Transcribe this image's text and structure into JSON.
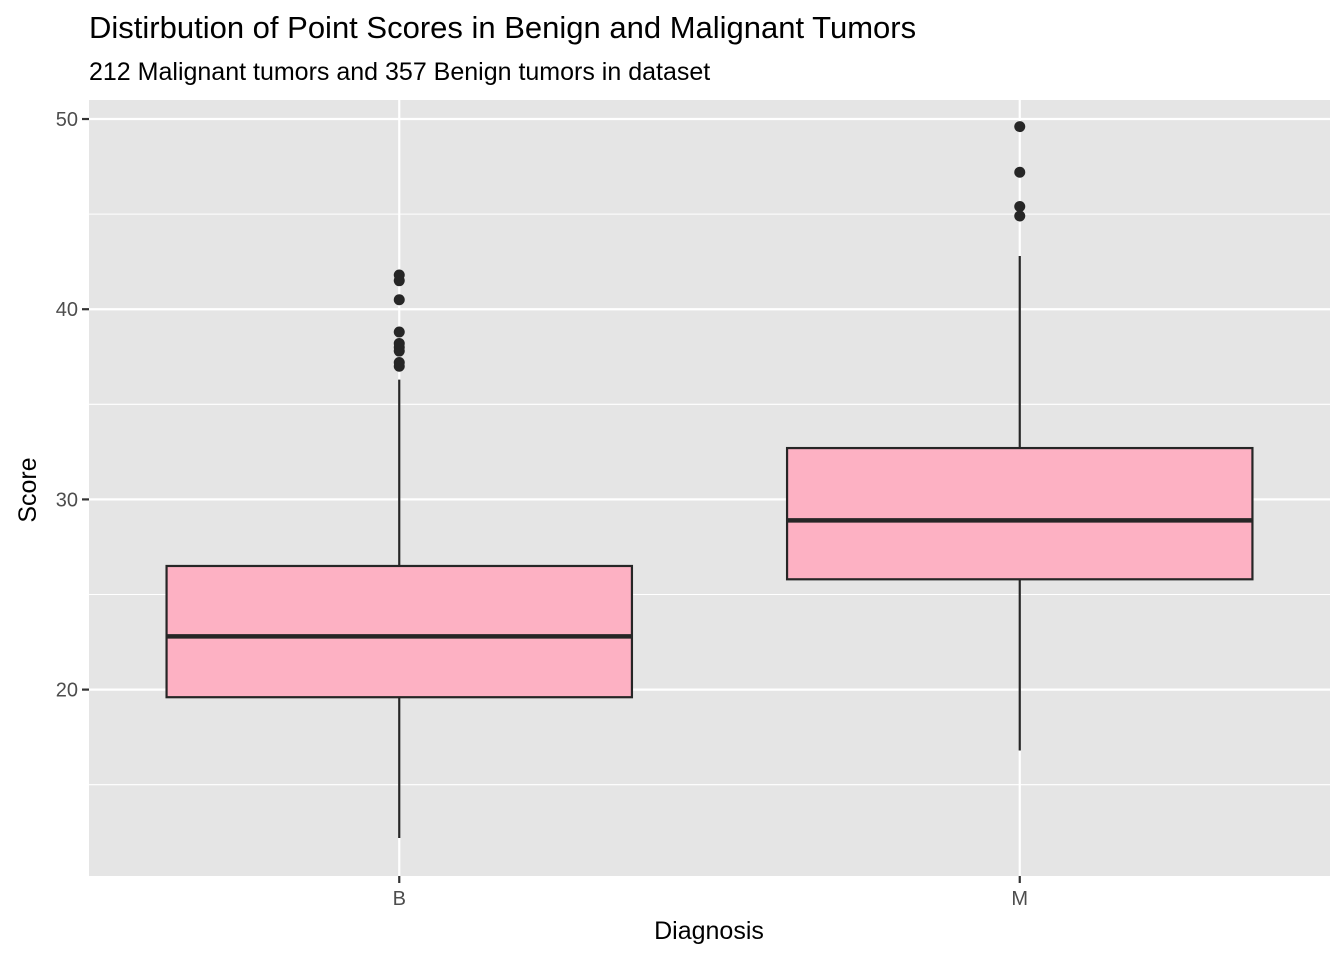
{
  "chart_data": {
    "type": "box",
    "title": "Distirbution of Point Scores in Benign and Malignant Tumors",
    "subtitle": "212 Malignant tumors and 357 Benign tumors in dataset",
    "xlabel": "Diagnosis",
    "ylabel": "Score",
    "categories": [
      "B",
      "M"
    ],
    "ylim": [
      10.2,
      51.0
    ],
    "y_ticks": [
      20,
      30,
      40,
      50
    ],
    "grid": true,
    "legend": "none",
    "fill_color": "#FDB1C3",
    "box_stroke": "#262626",
    "panel_background": "#E5E5E5",
    "boxes": [
      {
        "category": "B",
        "whisker_low": 12.2,
        "q1": 19.6,
        "median": 22.8,
        "q3": 26.5,
        "whisker_high": 36.3,
        "outliers": [
          37.0,
          37.2,
          37.8,
          38.0,
          38.2,
          38.8,
          40.5,
          41.5,
          41.8
        ]
      },
      {
        "category": "M",
        "whisker_low": 16.8,
        "q1": 25.8,
        "median": 28.9,
        "q3": 32.7,
        "whisker_high": 42.8,
        "outliers": [
          44.9,
          45.4,
          47.2,
          49.6
        ]
      }
    ]
  }
}
